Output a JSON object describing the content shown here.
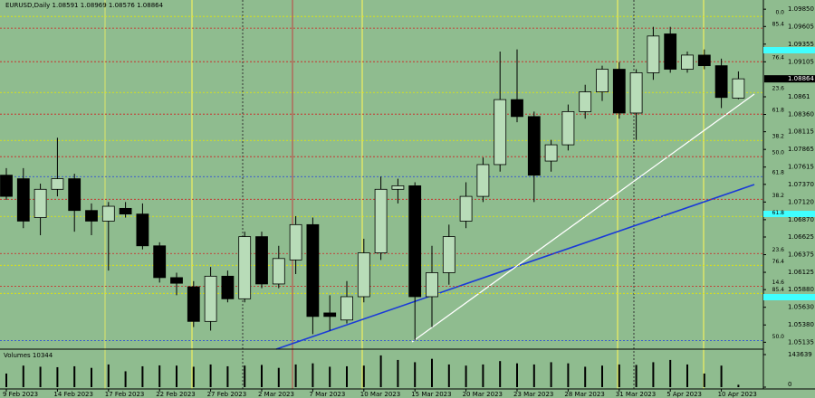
{
  "chart_data": {
    "type": "candlestick",
    "title": "EURUSD,Daily",
    "categories": [
      "9 Feb 2023",
      null,
      null,
      "14 Feb 2023",
      null,
      null,
      "17 Feb 2023",
      null,
      null,
      "22 Feb 2023",
      null,
      null,
      "27 Feb 2023",
      null,
      null,
      "2 Mar 2023",
      null,
      null,
      "7 Mar 2023",
      null,
      null,
      "10 Mar 2023",
      null,
      null,
      "15 Mar 2023",
      null,
      null,
      "20 Mar 2023",
      null,
      null,
      "23 Mar 2023",
      null,
      null,
      "28 Mar 2023",
      null,
      null,
      "31 Mar 2023",
      null,
      null,
      "5 Apr 2023",
      null,
      null,
      "10 Apr 2023",
      null
    ],
    "open": [
      1.075,
      1.0745,
      1.069,
      1.073,
      1.0745,
      1.07,
      1.0685,
      1.0703,
      1.0695,
      1.065,
      1.0605,
      1.0592,
      1.0543,
      1.0607,
      1.0575,
      1.0663,
      1.0596,
      1.063,
      1.068,
      1.0555,
      1.0545,
      1.0578,
      1.064,
      1.073,
      1.0735,
      1.0578,
      1.0612,
      1.0685,
      1.072,
      1.0765,
      1.0857,
      1.0833,
      1.077,
      1.0793,
      1.084,
      1.0868,
      1.09,
      1.0838,
      1.0895,
      1.095,
      1.09,
      1.092,
      1.0905,
      1.08591
    ],
    "high": [
      1.076,
      1.076,
      1.0738,
      1.0803,
      1.0752,
      1.071,
      1.0712,
      1.0712,
      1.071,
      1.0655,
      1.0612,
      1.06,
      1.062,
      1.0615,
      1.067,
      1.067,
      1.065,
      1.0692,
      1.069,
      1.058,
      1.06,
      1.066,
      1.0748,
      1.0745,
      1.074,
      1.065,
      1.068,
      1.074,
      1.0775,
      1.0925,
      1.0928,
      1.084,
      1.08,
      1.085,
      1.0878,
      1.0905,
      1.091,
      1.09,
      1.096,
      1.096,
      1.0925,
      1.0928,
      1.0915,
      1.08969
    ],
    "low": [
      1.0715,
      1.0675,
      1.0665,
      1.072,
      1.067,
      1.0665,
      1.0615,
      1.069,
      1.0645,
      1.0598,
      1.058,
      1.0535,
      1.053,
      1.057,
      1.057,
      1.059,
      1.059,
      1.061,
      1.0525,
      1.053,
      1.054,
      1.057,
      1.063,
      1.071,
      1.0516,
      1.0535,
      1.0595,
      1.0675,
      1.0712,
      1.0755,
      1.0825,
      1.0712,
      1.0755,
      1.0785,
      1.083,
      1.0855,
      1.083,
      1.08,
      1.0885,
      1.0895,
      1.0895,
      1.09,
      1.0845,
      1.08576
    ],
    "close": [
      1.072,
      1.0685,
      1.073,
      1.0745,
      1.07,
      1.0685,
      1.0706,
      1.0695,
      1.065,
      1.0605,
      1.0597,
      1.0543,
      1.0607,
      1.0575,
      1.0663,
      1.0596,
      1.0632,
      1.068,
      1.055,
      1.055,
      1.0578,
      1.064,
      1.073,
      1.0735,
      1.0578,
      1.0612,
      1.0663,
      1.072,
      1.0765,
      1.0857,
      1.0833,
      1.075,
      1.0793,
      1.084,
      1.0868,
      1.09,
      1.0838,
      1.0895,
      1.0947,
      1.09,
      1.092,
      1.0905,
      1.086,
      1.08864
    ],
    "bull_color": "#b8dcb8",
    "bear_color": "#000000",
    "background": "#8fbc8f",
    "ylim": [
      1.0505,
      1.0998
    ],
    "yticks": [
      {
        "value": 1.0985,
        "label": "1.09850"
      },
      1.09605,
      1.09355,
      1.09105,
      1.0861,
      {
        "value": 1.0836,
        "label": "1.08360"
      },
      1.08115,
      1.07865,
      1.07615,
      {
        "value": 1.0737,
        "label": "1.07370"
      },
      {
        "value": 1.0712,
        "label": "1.07120"
      },
      {
        "value": 1.0687,
        "label": "1.06870"
      },
      1.06625,
      1.06375,
      1.06125,
      {
        "value": 1.0588,
        "label": "1.05880"
      },
      {
        "value": 1.0563,
        "label": "1.05630"
      },
      {
        "value": 1.0538,
        "label": "1.05380"
      },
      1.05135
    ],
    "levels": [
      {
        "price": 1.09747,
        "label": "0.0",
        "color": "#e8e800"
      },
      {
        "price": 1.09581,
        "label": "85.4",
        "color": "#d02020"
      },
      {
        "price": 1.09107,
        "label": "76.4",
        "color": "#d02020"
      },
      {
        "price": 1.08671,
        "label": "23.6",
        "color": "#e8e800"
      },
      {
        "price": 1.08364,
        "label": "61.8",
        "color": "#d02020"
      },
      {
        "price": 1.07992,
        "label": "38.2",
        "color": "#e8e800"
      },
      {
        "price": 1.07762,
        "label": "50.0",
        "color": "#d02020"
      },
      {
        "price": 1.0748,
        "label": "61.8",
        "color": "#2040e0"
      },
      {
        "price": 1.07159,
        "label": "38.2",
        "color": "#d02020"
      },
      {
        "price": 1.06916,
        "label": "61.8",
        "color": "#e8e800"
      },
      {
        "price": 1.06391,
        "label": "23.6",
        "color": "#d02020"
      },
      {
        "price": 1.06224,
        "label": "76.4",
        "color": "#e8e800"
      },
      {
        "price": 1.05929,
        "label": "14.6",
        "color": "#d02020"
      },
      {
        "price": 1.05827,
        "label": "85.4",
        "color": "#e8e800"
      },
      {
        "price": 1.0516,
        "label": "50.0",
        "color": "#2040e0"
      }
    ],
    "volume": {
      "title": "Volumes",
      "values": [
        60000,
        95000,
        90000,
        88000,
        92000,
        85000,
        100000,
        70000,
        92000,
        96000,
        95000,
        90000,
        100000,
        92000,
        95000,
        98000,
        85000,
        100000,
        105000,
        90000,
        92000,
        95000,
        140000,
        120000,
        110000,
        125000,
        100000,
        95000,
        100000,
        115000,
        105000,
        100000,
        110000,
        105000,
        90000,
        95000,
        100000,
        98000,
        110000,
        120000,
        100000,
        60000,
        95000,
        10344
      ],
      "ylim": [
        0,
        143639
      ],
      "yticks": [
        143639,
        0
      ]
    }
  }
}
